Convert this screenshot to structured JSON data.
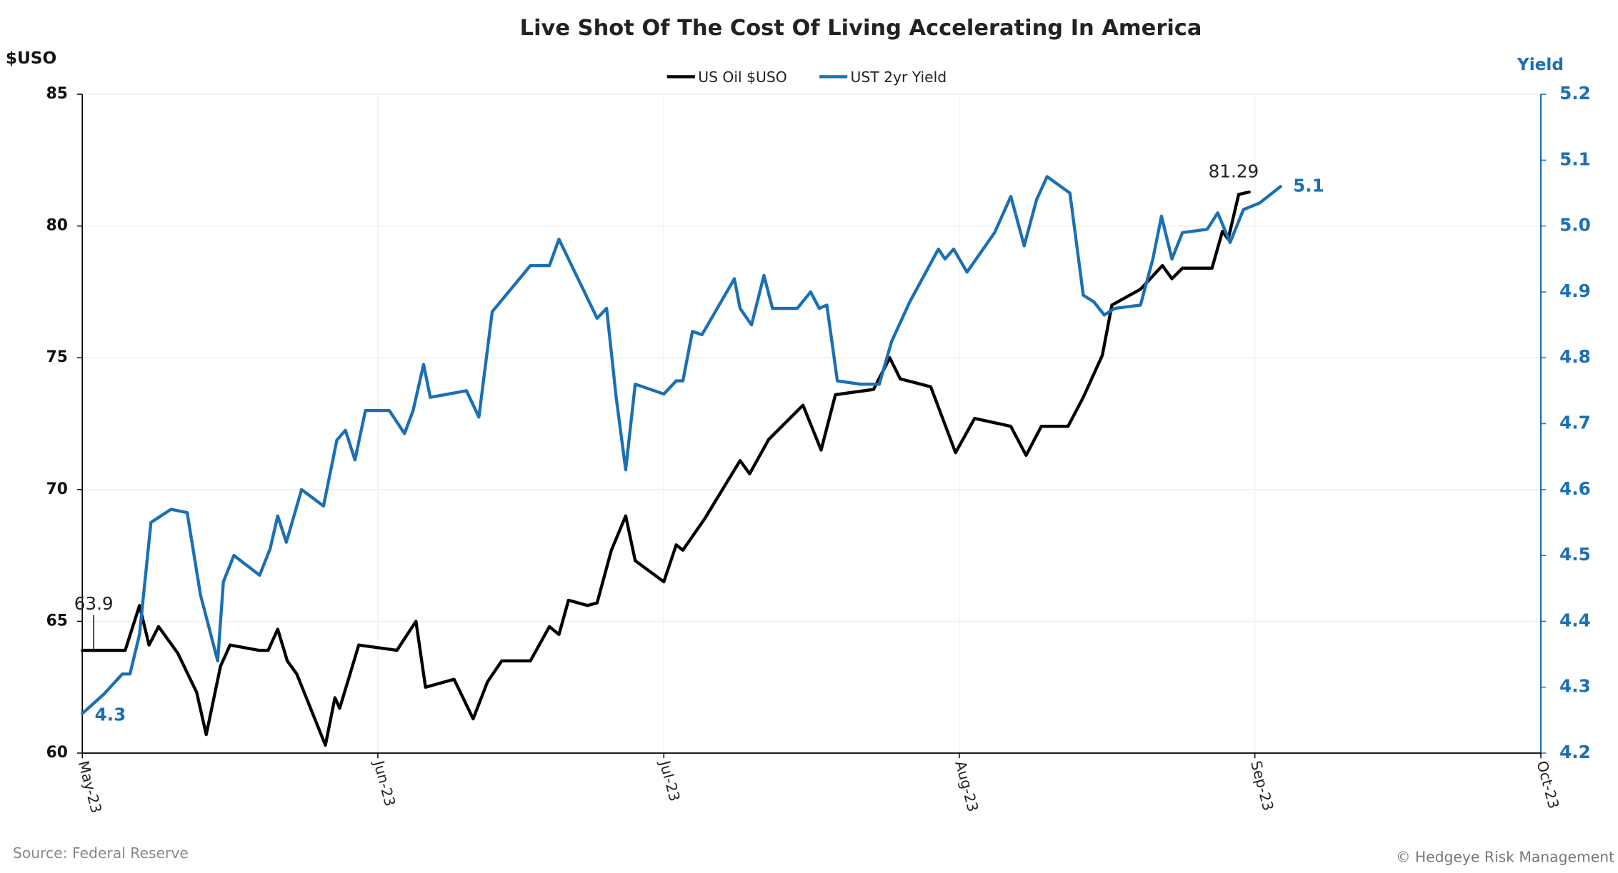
{
  "chart_data": {
    "type": "line",
    "title": "Live Shot Of The Cost Of Living Accelerating In America",
    "y_label": "$USO",
    "y2_label": "Yield",
    "source": "Source: Federal Reserve",
    "credit": "© Hedgeye Risk Management",
    "xlim": [
      0,
      153
    ],
    "xticks": [
      {
        "value": 0,
        "label": "May-23"
      },
      {
        "value": 31,
        "label": "Jun-23"
      },
      {
        "value": 61,
        "label": "Jul-23"
      },
      {
        "value": 92,
        "label": "Aug-23"
      },
      {
        "value": 123,
        "label": "Sep-23"
      },
      {
        "value": 153,
        "label": "Oct-23"
      }
    ],
    "ylim": [
      60,
      85
    ],
    "yticks": [
      60,
      65,
      70,
      75,
      80,
      85
    ],
    "y2lim": [
      4.2,
      5.2
    ],
    "y2ticks": [
      4.2,
      4.3,
      4.4,
      4.5,
      4.6,
      4.7,
      4.8,
      4.9,
      {
        "value": 5,
        "label": "5.0"
      },
      5.1,
      5.2
    ],
    "grid": true,
    "legend": "top",
    "series": [
      {
        "name": "US Oil $USO",
        "color": "#000000",
        "x": [
          0,
          1,
          4.5,
          6,
          7,
          8,
          10,
          12,
          13,
          14.5,
          15.5,
          18.5,
          19.5,
          20.5,
          21.5,
          22.5,
          25.5,
          26.5,
          27,
          29,
          33,
          35,
          36,
          39,
          41,
          42.5,
          44,
          47,
          49,
          50,
          51,
          53,
          54,
          55.5,
          57,
          58,
          61,
          62.3,
          63,
          65.3,
          69,
          70,
          72,
          75.6,
          77.5,
          79,
          83,
          84.7,
          85.8,
          89,
          91.6,
          93.6,
          97.4,
          99,
          100.6,
          103.4,
          105,
          107,
          108,
          111,
          113.3,
          114.3,
          115.4,
          118.5,
          119.6,
          120.2,
          121.3,
          122.4
        ],
        "values": [
          63.9,
          63.9,
          63.9,
          65.6,
          64.1,
          64.8,
          63.8,
          62.3,
          60.7,
          63.3,
          64.1,
          63.9,
          63.9,
          64.7,
          63.5,
          63.0,
          60.3,
          62.1,
          61.7,
          64.1,
          63.9,
          65.0,
          62.5,
          62.8,
          61.3,
          62.7,
          63.5,
          63.5,
          64.8,
          64.5,
          65.8,
          65.6,
          65.7,
          67.7,
          69.0,
          67.3,
          66.5,
          67.9,
          67.7,
          68.9,
          71.1,
          70.6,
          71.9,
          73.2,
          71.5,
          73.6,
          73.8,
          75.0,
          74.2,
          73.9,
          71.4,
          72.7,
          72.4,
          71.3,
          72.4,
          72.4,
          73.5,
          75.1,
          77.0,
          77.6,
          78.5,
          78.0,
          78.4,
          78.4,
          79.8,
          79.5,
          81.2,
          81.29
        ]
      },
      {
        "name": "UST 2yr Yield",
        "color": "#1a6fb5",
        "axis": "y2",
        "x": [
          0,
          2.3,
          4.2,
          5,
          6,
          7.2,
          9.3,
          11,
          12.4,
          14.2,
          14.8,
          15.9,
          18.6,
          19.7,
          20.5,
          21.4,
          23,
          25.3,
          26.7,
          27.6,
          28.6,
          29.7,
          32.2,
          33.8,
          34.7,
          35.8,
          36.5,
          40.3,
          41.6,
          43,
          47,
          49,
          50,
          52,
          54,
          55,
          56,
          57,
          58,
          61,
          62.3,
          63,
          64,
          65,
          68.4,
          69,
          70.2,
          71.5,
          72.4,
          75,
          76.4,
          77.3,
          78.1,
          79.2,
          81.6,
          83.6,
          84.9,
          86.8,
          89.8,
          90.5,
          91.4,
          92.8,
          95.7,
          97.4,
          98.8,
          100.1,
          101.2,
          103.6,
          105,
          106.1,
          107.2,
          108.3,
          111,
          112.3,
          113.2,
          114.3,
          115.4,
          118,
          119.1,
          120.4,
          121.8,
          123.5,
          125.7
        ],
        "values": [
          4.26,
          4.29,
          4.32,
          4.32,
          4.38,
          4.55,
          4.57,
          4.565,
          4.44,
          4.34,
          4.46,
          4.5,
          4.47,
          4.51,
          4.56,
          4.52,
          4.6,
          4.575,
          4.675,
          4.69,
          4.645,
          4.72,
          4.72,
          4.685,
          4.72,
          4.79,
          4.74,
          4.75,
          4.71,
          4.87,
          4.94,
          4.94,
          4.98,
          4.92,
          4.86,
          4.875,
          4.74,
          4.63,
          4.76,
          4.745,
          4.765,
          4.765,
          4.84,
          4.835,
          4.92,
          4.875,
          4.85,
          4.925,
          4.875,
          4.875,
          4.9,
          4.875,
          4.88,
          4.765,
          4.76,
          4.76,
          4.825,
          4.885,
          4.965,
          4.95,
          4.965,
          4.93,
          4.99,
          5.045,
          4.97,
          5.04,
          5.075,
          5.05,
          4.895,
          4.885,
          4.865,
          4.875,
          4.88,
          4.95,
          5.015,
          4.95,
          4.99,
          4.995,
          5.02,
          4.975,
          5.025,
          5.035,
          5.06
        ],
        "value_labels": [
          "4.3",
          null,
          null,
          null,
          null,
          null,
          null,
          null,
          null,
          null,
          null,
          null,
          null,
          null,
          null,
          null,
          null,
          null,
          null,
          null,
          null,
          null,
          null,
          null,
          null,
          null,
          null,
          null,
          null,
          null,
          null,
          null,
          null,
          null,
          null,
          null,
          null,
          null,
          null,
          null,
          null,
          null,
          null,
          null,
          null,
          null,
          null,
          null,
          null,
          null,
          null,
          null,
          null,
          null,
          null,
          null,
          null,
          null,
          null,
          null,
          null,
          null,
          null,
          null,
          null,
          null,
          null,
          null,
          null,
          null,
          null,
          null,
          null,
          null,
          null,
          null,
          null,
          null,
          null,
          null,
          null,
          null,
          "5.1"
        ]
      }
    ]
  }
}
